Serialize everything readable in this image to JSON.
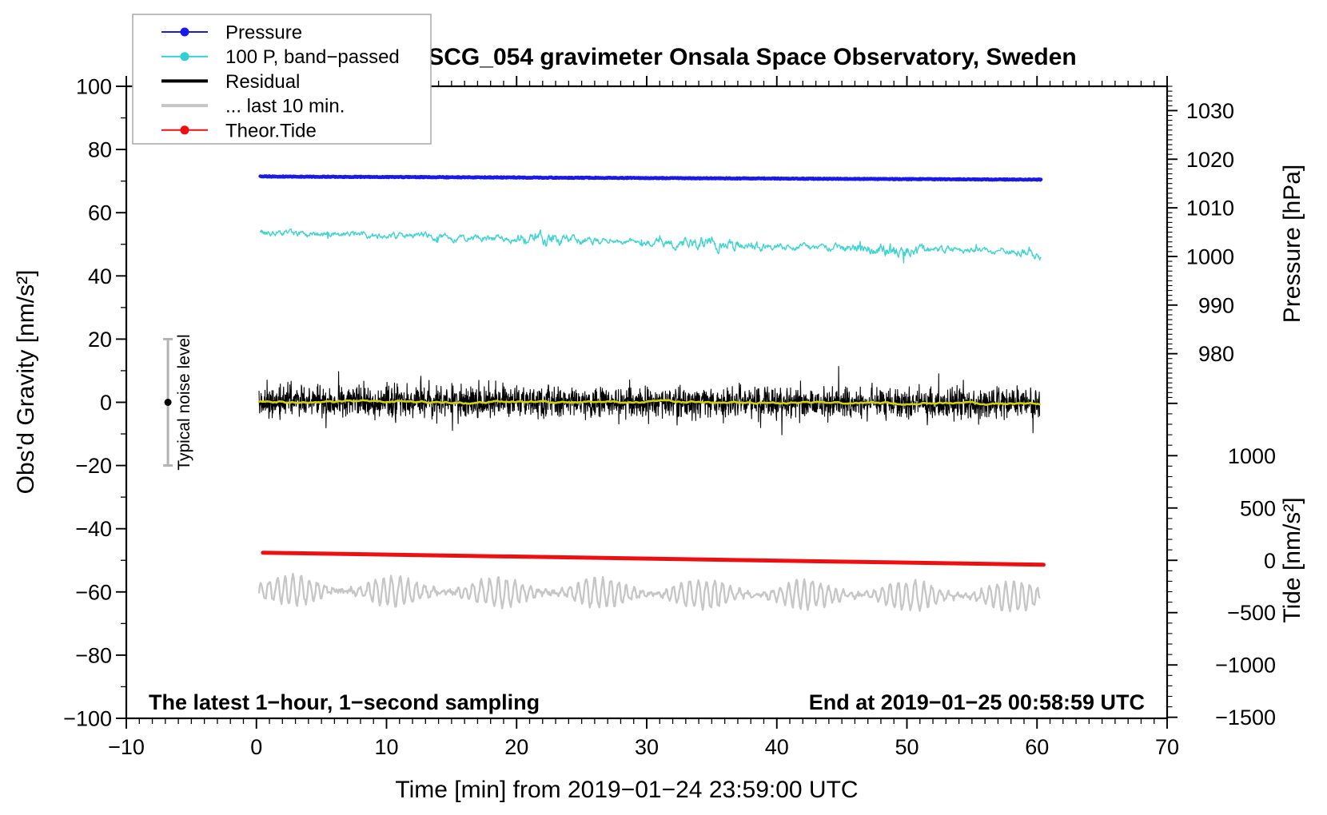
{
  "chart_data": {
    "type": "line",
    "title": "SCG_054 gravimeter Onsala Space Observatory, Sweden",
    "x_axis": {
      "label": "Time [min] from 2019−01−24 23:59:00 UTC",
      "min": -10,
      "max": 70,
      "major": 10,
      "minor": 1
    },
    "y_left": {
      "label": "Obs'd Gravity [nm/s²]",
      "min": -100,
      "max": 100,
      "major": 20,
      "minor": 10
    },
    "y_right_pressure": {
      "label": "Pressure [hPa]",
      "min": 970,
      "max": 1035,
      "major": 10,
      "minor": 1,
      "gravity_span": [
        0,
        100
      ],
      "labeled": [
        980,
        990,
        1000,
        1010,
        1020,
        1030
      ]
    },
    "y_right_tide": {
      "label": "Tide [nm/s²]",
      "min": -1510,
      "max": 1510,
      "major": 500,
      "minor": 100,
      "gravity_span": [
        -100,
        0
      ],
      "labeled": [
        -1500,
        -1000,
        -500,
        0,
        500,
        1000
      ]
    },
    "series": [
      {
        "id": "pressure",
        "name": "Pressure",
        "axis": "pressure",
        "style": "flat",
        "color": "#1a1ae6",
        "width": 4.5,
        "x_start": 0.3,
        "x_end": 60.3,
        "v_start": 1016.45,
        "v_end": 1015.8,
        "noise": 0.08,
        "points": 1200
      },
      {
        "id": "bandpassed",
        "name": "100 P, band−passed",
        "axis": "gravity",
        "style": "jitter",
        "color": "#3ed4d4",
        "width": 1.4,
        "x_start": 0.3,
        "x_end": 60.3,
        "v_start": 53.8,
        "v_end": 47.3,
        "noise": 0.6,
        "points": 1400
      },
      {
        "id": "residual",
        "name": "Residual",
        "axis": "gravity",
        "style": "spiky",
        "color": "#000000",
        "width": 1.1,
        "x_start": 0.2,
        "x_end": 60.2,
        "v_start": 0.3,
        "v_end": -0.3,
        "noise": 3.6,
        "points": 2600
      },
      {
        "id": "residual-smoothed",
        "name": "Residual smoothed",
        "axis": "gravity",
        "style": "smooth",
        "color": "#d2d200",
        "width": 2.6,
        "x_start": 0.2,
        "x_end": 60.2,
        "v_start": 0.2,
        "v_end": -0.4,
        "noise": 0.9,
        "points": 500
      },
      {
        "id": "last10",
        "name": "... last 10 min.",
        "axis": "gravity",
        "style": "wave",
        "color": "#c6c6c6",
        "width": 2.3,
        "x_start": 0.2,
        "x_end": 60.2,
        "v_start": -59.5,
        "v_end": -61.5,
        "noise": 4.6,
        "points": 900
      },
      {
        "id": "tide",
        "name": "Theor.Tide",
        "axis": "tide",
        "style": "line",
        "color": "#ee1010",
        "width": 5,
        "x_start": 0.5,
        "x_end": 60.5,
        "v_start": 73,
        "v_end": -42,
        "noise": 0,
        "points": 2
      }
    ],
    "noise_marker": {
      "x": -6.8,
      "center": 0,
      "half_range": 20,
      "label": "Typical noise level",
      "bar_color": "#b3b3b3",
      "dot_color": "#000000"
    },
    "annotations": {
      "bottom_left": "The latest 1−hour, 1−second sampling",
      "bottom_right": "End at 2019−01−25 00:58:59 UTC"
    },
    "frame_color": "#000000"
  },
  "legend": {
    "items": [
      {
        "label": "Pressure",
        "color": "#1a1ae6",
        "marker": "dot-line"
      },
      {
        "label": "100 P, band−passed",
        "color": "#2fd0d0",
        "marker": "dot-line"
      },
      {
        "label": "Residual",
        "color": "#000000",
        "marker": "thick-line"
      },
      {
        "label": "... last 10 min.",
        "color": "#c6c6c6",
        "marker": "thick-line"
      },
      {
        "label": "Theor.Tide",
        "color": "#ee1010",
        "marker": "dot-line"
      }
    ]
  }
}
